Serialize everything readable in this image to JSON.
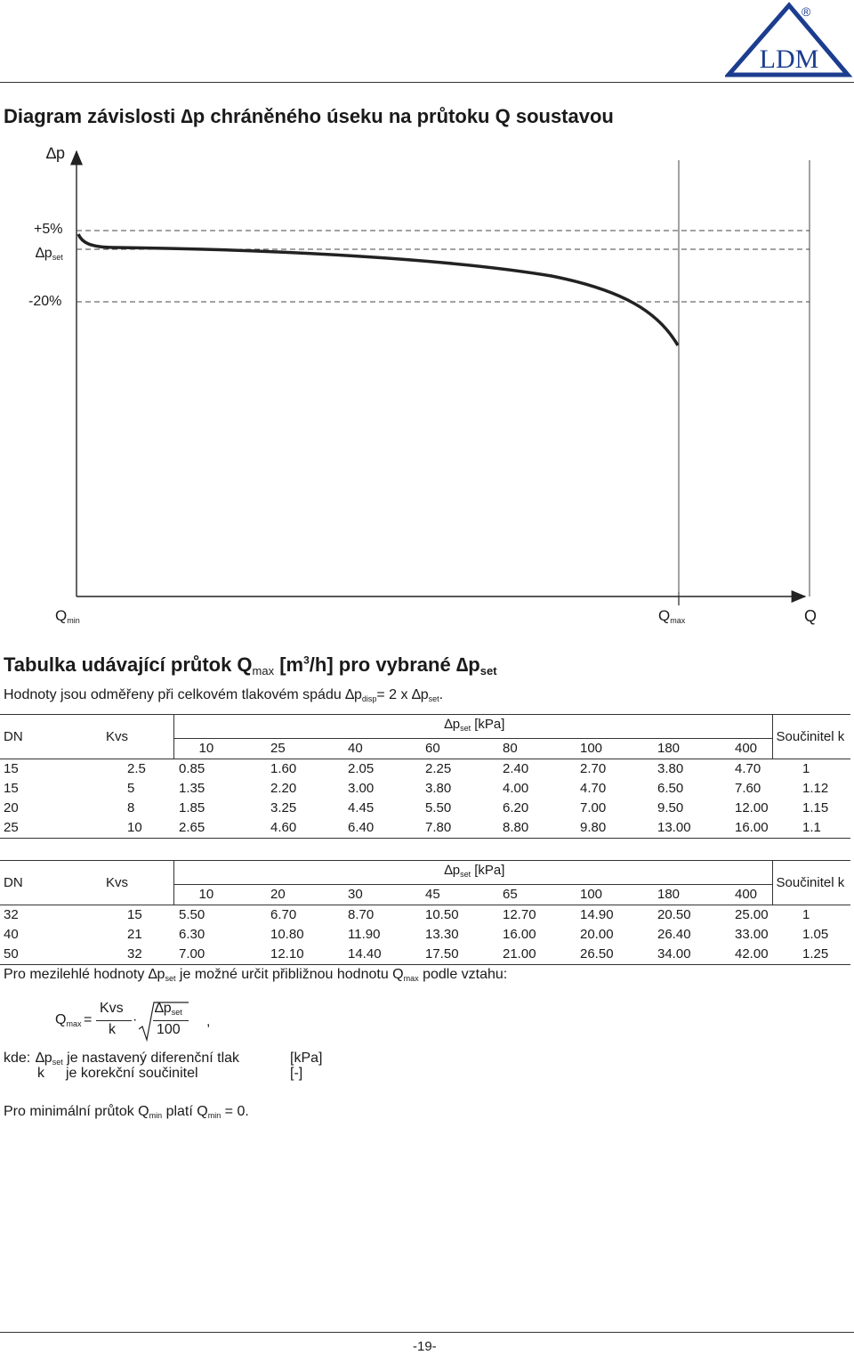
{
  "logo": {
    "text": "LDM",
    "registered": "®",
    "color": "#1c3d8f"
  },
  "diagram": {
    "title_parts": [
      "Diagram závislosti ",
      "∆p",
      " chráněného úseku na průtoku Q soustavou"
    ],
    "y_axis_label": "∆p",
    "labels": {
      "plus5": "+5%",
      "dp": "∆p",
      "dp_sub": "set",
      "minus20": "-20%"
    },
    "x_labels": {
      "qmin": "Q",
      "qmin_sub": "min",
      "qmax": "Q",
      "qmax_sub": "max",
      "q": "Q"
    }
  },
  "table_section": {
    "title_a": "Tabulka udávající průtok Q",
    "title_sub": "max",
    "title_b": " [m",
    "title_sup": "3",
    "title_c": "/h] pro vybrané ",
    "title_dp": "∆p",
    "title_dp_sub": "set",
    "note_a": "Hodnoty jsou odměřeny při celkovém tlakovém spádu ",
    "note_dp": "∆p",
    "note_dp_sub": "disp",
    "note_b": "= 2 x ",
    "note_dp2": "∆p",
    "note_dp2_sub": "set",
    "note_c": "."
  },
  "table1": {
    "col_dn": "DN",
    "col_kvs": "Kvs",
    "dp_label": "∆p",
    "dp_sub": "set",
    "dp_unit": " [kPa]",
    "col_k": "Součinitel k",
    "pressures": [
      "10",
      "25",
      "40",
      "60",
      "80",
      "100",
      "180",
      "400"
    ],
    "rows": [
      {
        "dn": "15",
        "kvs": "2.5",
        "vals": [
          "0.85",
          "1.60",
          "2.05",
          "2.25",
          "2.40",
          "2.70",
          "3.80",
          "4.70"
        ],
        "k": "1"
      },
      {
        "dn": "15",
        "kvs": "5",
        "vals": [
          "1.35",
          "2.20",
          "3.00",
          "3.80",
          "4.00",
          "4.70",
          "6.50",
          "7.60"
        ],
        "k": "1.12"
      },
      {
        "dn": "20",
        "kvs": "8",
        "vals": [
          "1.85",
          "3.25",
          "4.45",
          "5.50",
          "6.20",
          "7.00",
          "9.50",
          "12.00"
        ],
        "k": "1.15"
      },
      {
        "dn": "25",
        "kvs": "10",
        "vals": [
          "2.65",
          "4.60",
          "6.40",
          "7.80",
          "8.80",
          "9.80",
          "13.00",
          "16.00"
        ],
        "k": "1.1"
      }
    ]
  },
  "table2": {
    "col_dn": "DN",
    "col_kvs": "Kvs",
    "dp_label": "∆p",
    "dp_sub": "set",
    "dp_unit": " [kPa]",
    "col_k": "Součinitel k",
    "pressures": [
      "10",
      "20",
      "30",
      "45",
      "65",
      "100",
      "180",
      "400"
    ],
    "rows": [
      {
        "dn": "32",
        "kvs": "15",
        "vals": [
          "5.50",
          "6.70",
          "8.70",
          "10.50",
          "12.70",
          "14.90",
          "20.50",
          "25.00"
        ],
        "k": "1"
      },
      {
        "dn": "40",
        "kvs": "21",
        "vals": [
          "6.30",
          "10.80",
          "11.90",
          "13.30",
          "16.00",
          "20.00",
          "26.40",
          "33.00"
        ],
        "k": "1.05"
      },
      {
        "dn": "50",
        "kvs": "32",
        "vals": [
          "7.00",
          "12.10",
          "14.40",
          "17.50",
          "21.00",
          "26.50",
          "34.00",
          "42.00"
        ],
        "k": "1.25"
      }
    ]
  },
  "formula_section": {
    "intro_a": "Pro mezilehlé hodnoty ",
    "intro_dp": "∆p",
    "intro_dp_sub": "set",
    "intro_b": " je možné určit přibližnou hodnotu Q",
    "intro_q_sub": "max",
    "intro_c": " podle vztahu:",
    "q": "Q",
    "q_sub": "max",
    "eq": "=",
    "num": "Kvs",
    "den": "k",
    "dot": "·",
    "rnum": "∆p",
    "rnum_sub": "set",
    "rden": "100",
    "comma": ",",
    "kde": "kde:",
    "def1_dp": "∆p",
    "def1_sub": "set",
    "def1_text": " je nastavený diferenční tlak",
    "def1_unit": "[kPa]",
    "def2_sym": "k",
    "def2_text": "je korekční součinitel",
    "def2_unit": "[-]",
    "min_a": "Pro minimální průtok Q",
    "min_sub1": "min",
    "min_b": " platí Q",
    "min_sub2": "min",
    "min_c": " = 0."
  },
  "footer": {
    "page": "-19-"
  }
}
